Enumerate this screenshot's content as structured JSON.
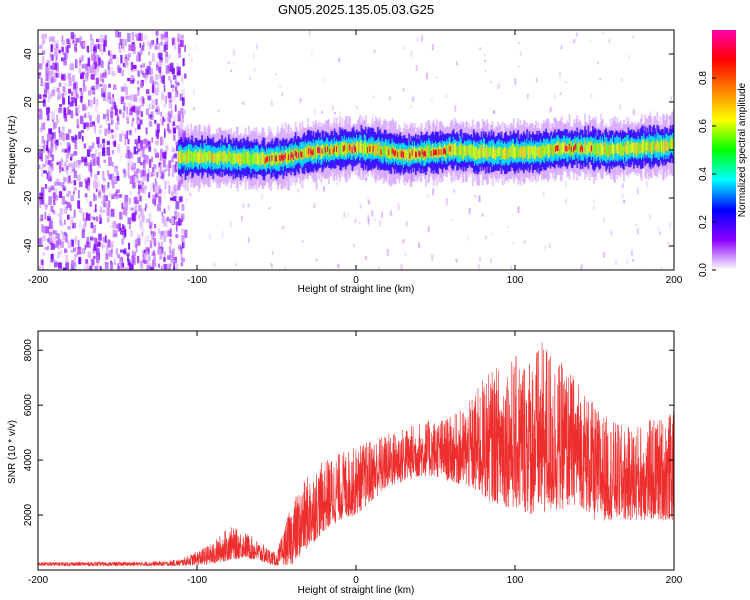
{
  "title": "GN05.2025.135.05.03.G25",
  "chart_data": [
    {
      "type": "heatmap",
      "xlabel": "Height of straight line (km)",
      "ylabel": "Frequency (Hz)",
      "xlim": [
        -200,
        200
      ],
      "ylim": [
        -50,
        50
      ],
      "xticks": [
        -200,
        -100,
        0,
        100,
        200
      ],
      "yticks": [
        -40,
        -20,
        0,
        20,
        40
      ],
      "colorbar": {
        "label": "Normalized spectral amplitude",
        "range": [
          0.0,
          1.0
        ],
        "ticks": [
          0.0,
          0.2,
          0.4,
          0.6,
          0.8
        ],
        "colors": [
          "#ffffff",
          "#8a00ff",
          "#0000ff",
          "#00ffff",
          "#00ff00",
          "#ffff00",
          "#ff8000",
          "#ff0000",
          "#ff00aa"
        ]
      },
      "ridge": {
        "description_points_x": [
          -115,
          -100,
          -80,
          -60,
          -45,
          -30,
          -15,
          0,
          15,
          30,
          45,
          60,
          80,
          100,
          120,
          140,
          160,
          180,
          200
        ],
        "frequency_y": [
          -3,
          -3,
          -3,
          -4,
          -3,
          -1,
          0,
          1,
          0,
          -2,
          -1,
          0,
          -1,
          -1,
          0,
          1,
          0,
          1,
          2
        ]
      },
      "grid": false
    },
    {
      "type": "line",
      "xlabel": "Height of straight line (km)",
      "ylabel": "SNR (10 * v/v)",
      "xlim": [
        -200,
        200
      ],
      "ylim": [
        0,
        8700
      ],
      "xticks": [
        -200,
        -100,
        0,
        100,
        200
      ],
      "yticks": [
        2000,
        4000,
        6000,
        8000
      ],
      "series": [
        {
          "color": "#ee2d2d",
          "envelope_x": [
            -200,
            -150,
            -120,
            -110,
            -100,
            -90,
            -80,
            -70,
            -60,
            -50,
            -40,
            -30,
            -20,
            -10,
            0,
            10,
            20,
            30,
            40,
            50,
            60,
            70,
            80,
            90,
            100,
            110,
            120,
            130,
            140,
            150,
            160,
            170,
            180,
            190,
            200
          ],
          "envelope_low": [
            150,
            150,
            150,
            150,
            180,
            200,
            350,
            450,
            300,
            150,
            200,
            800,
            1400,
            1800,
            2000,
            2500,
            3000,
            3200,
            3400,
            3400,
            3200,
            3000,
            2600,
            2400,
            2200,
            2000,
            2000,
            2200,
            2400,
            1800,
            1800,
            1800,
            1800,
            1800,
            1800
          ],
          "envelope_high": [
            300,
            300,
            320,
            400,
            700,
            1000,
            1600,
            1400,
            1000,
            600,
            2500,
            3500,
            4000,
            4300,
            4500,
            4800,
            5000,
            5200,
            5400,
            5500,
            5600,
            6000,
            7000,
            7500,
            7800,
            8000,
            8400,
            7500,
            7000,
            6000,
            5500,
            5200,
            5400,
            5600,
            5800
          ]
        }
      ],
      "grid": false
    }
  ]
}
